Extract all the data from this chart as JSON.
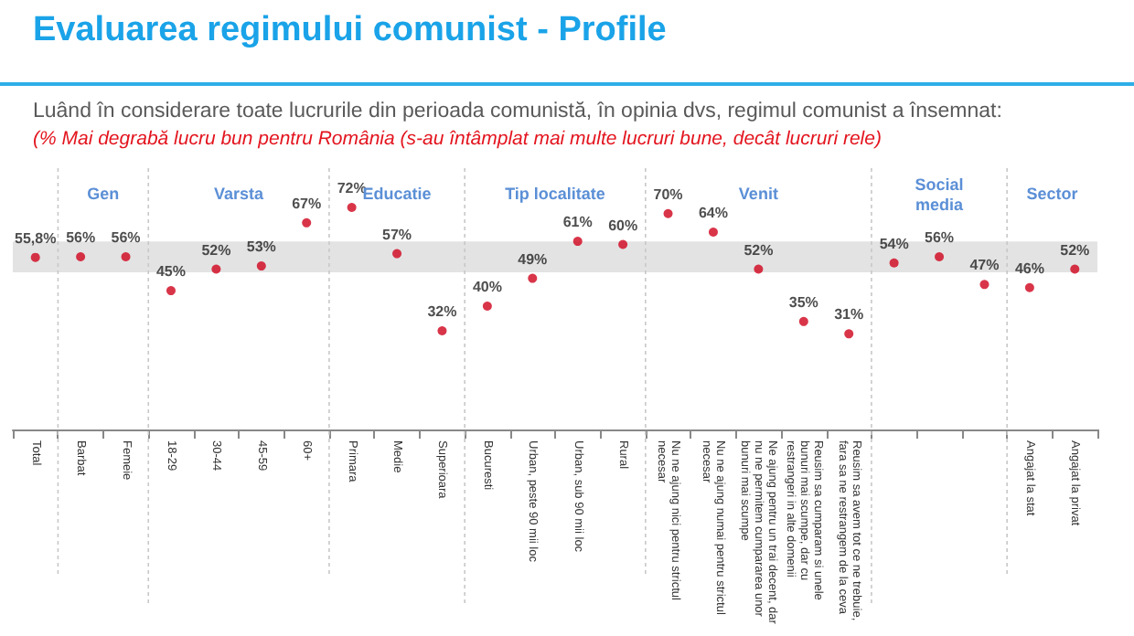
{
  "chart_data": {
    "type": "scatter",
    "title": "Evaluarea regimului comunist - Profile",
    "subtitle": "Luând în considerare toate lucrurile din perioada comunistă, în opinia dvs, regimul comunist a însemnat:",
    "annotations": [
      "(% Mai degrabă lucru bun pentru România (s-au întâmplat mai multe lucruri bune, decât lucruri rele)",
      "Gen",
      "Varsta",
      "Educatie",
      "Tip localitate",
      "Venit",
      "Social media",
      "Sector"
    ],
    "categories": [
      "Total",
      "Barbat",
      "Femeie",
      "18-29",
      "30-44",
      "45-59",
      "60+",
      "Primara",
      "Medie",
      "Superioara",
      "Bucuresti",
      "Urban, peste 90 mii loc",
      "Urban, sub 90 mii loc",
      "Rural",
      "Nu ne ajung nici pentru strictul necesar",
      "Nu ne ajung numai pentru strictul necesar",
      "Ne ajung pentru un trai decent, dar nu ne permitem cumpararea unor bunuri mai scumpe",
      "Reusim sa cumparam si unele bunuri mai scumpe, dar cu restrangeri in alte domenii",
      "Reusim sa avem tot ce ne trebuie, fara sa ne restrangem de la ceva",
      null,
      null,
      null,
      "Angajat la stat",
      "Angajat la privat"
    ],
    "values": [
      55.8,
      56,
      56,
      45,
      52,
      53,
      67,
      72,
      57,
      32,
      40,
      49,
      61,
      60,
      70,
      64,
      52,
      35,
      31,
      54,
      56,
      47,
      46,
      52
    ],
    "value_labels": [
      "55,8%",
      "56%",
      "56%",
      "45%",
      "52%",
      "53%",
      "67%",
      "72%",
      "57%",
      "32%",
      "40%",
      "49%",
      "61%",
      "60%",
      "70%",
      "64%",
      "52%",
      "35%",
      "31%",
      "54%",
      "56%",
      "47%",
      "46%",
      "52%"
    ],
    "color": "#d0021b",
    "marker": "circle",
    "tick_labels": "x",
    "grid": false,
    "bands": [
      {
        "axis": "y",
        "from": 51,
        "to": 61,
        "color": "#e3e3e3"
      }
    ]
  }
}
